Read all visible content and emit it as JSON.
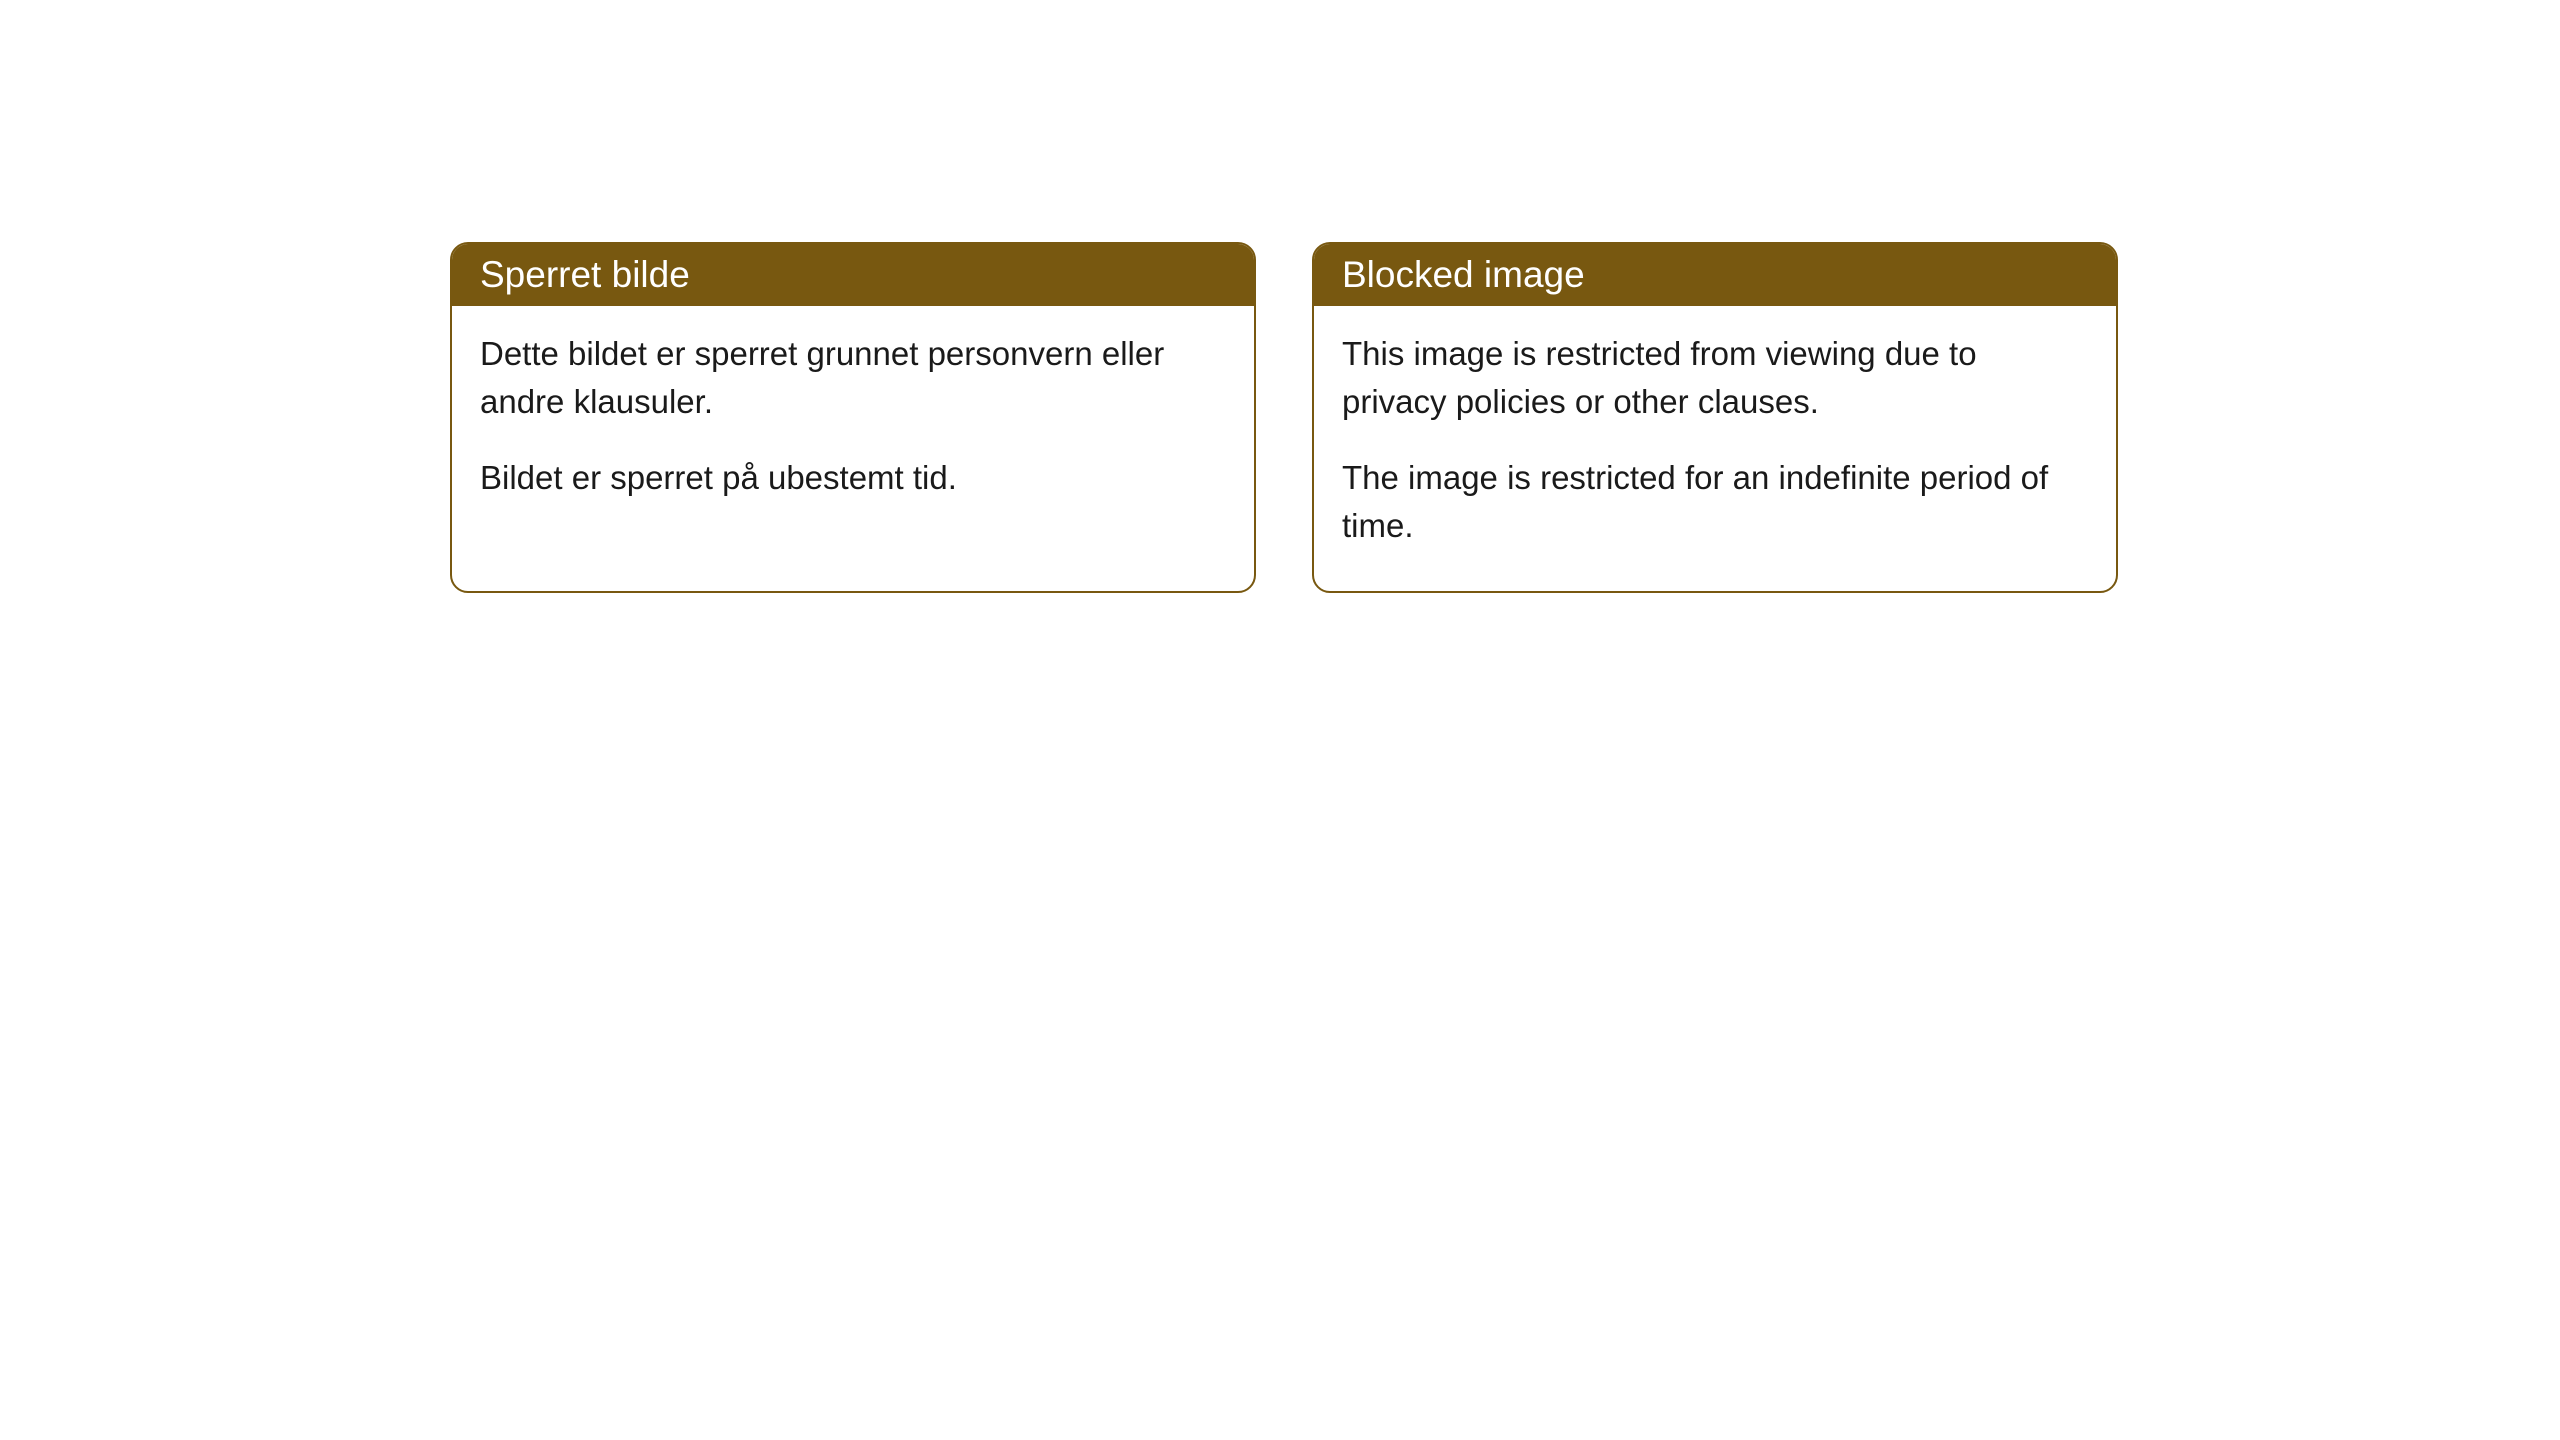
{
  "cards": [
    {
      "title": "Sperret bilde",
      "paragraph1": "Dette bildet er sperret grunnet personvern eller andre klausuler.",
      "paragraph2": "Bildet er sperret på ubestemt tid."
    },
    {
      "title": "Blocked image",
      "paragraph1": "This image is restricted from viewing due to privacy policies or other clauses.",
      "paragraph2": "The image is restricted for an indefinite period of time."
    }
  ],
  "styling": {
    "header_background": "#785810",
    "header_text_color": "#ffffff",
    "border_color": "#785810",
    "body_text_color": "#1a1a1a",
    "card_background": "#ffffff",
    "page_background": "#ffffff",
    "border_radius": 18,
    "title_fontsize": 37,
    "body_fontsize": 33
  }
}
